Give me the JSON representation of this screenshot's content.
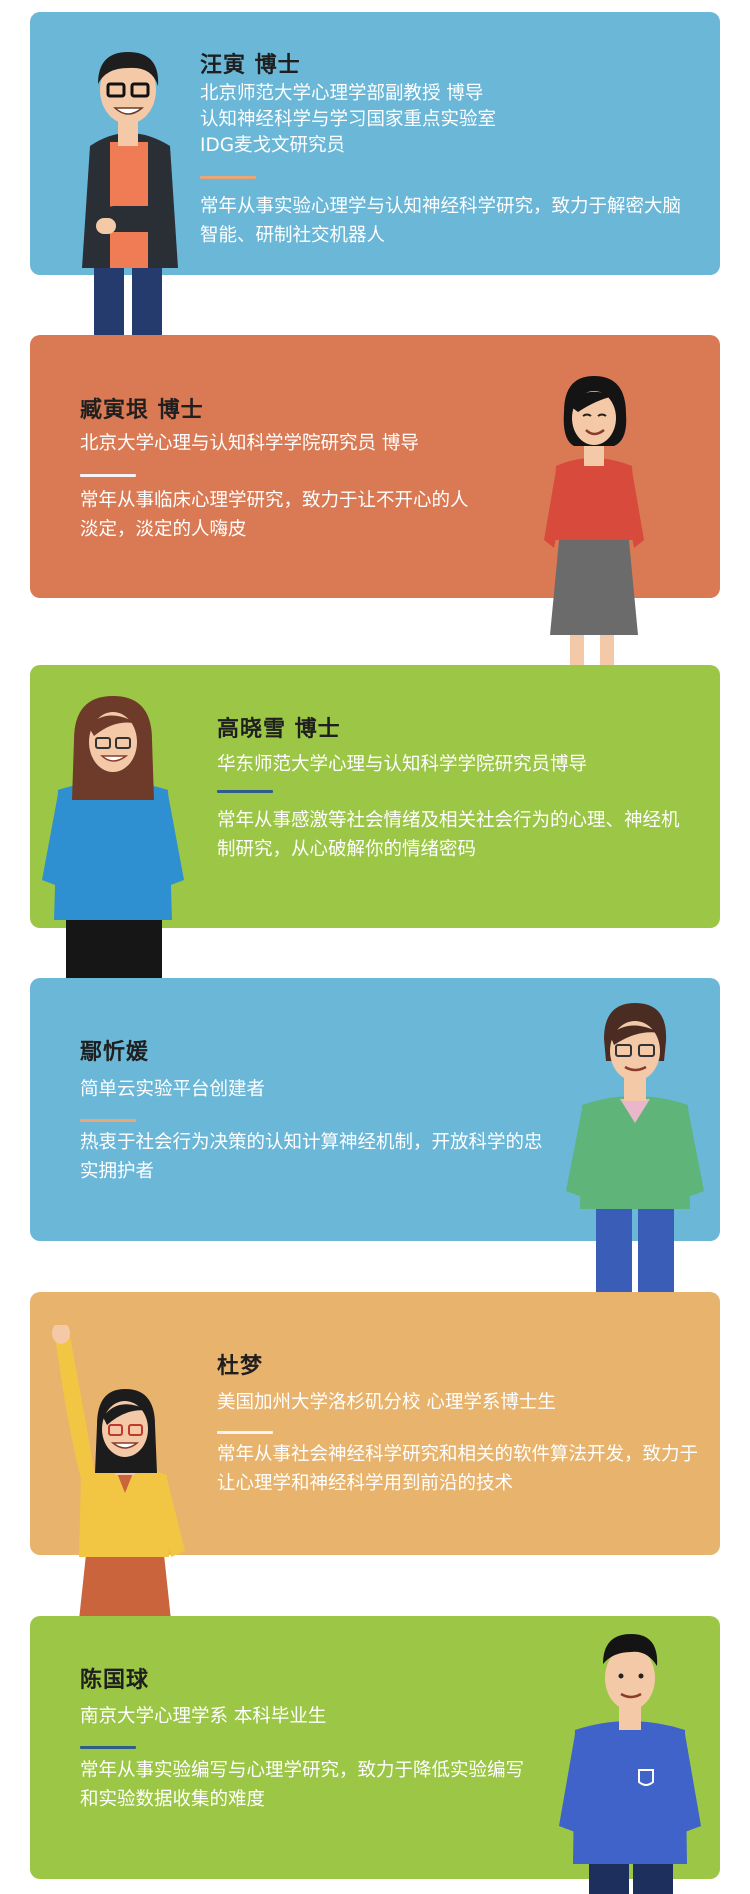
{
  "colors": {
    "blue": "#6ab7d8",
    "orange": "#d97a55",
    "green": "#9cc646",
    "gold": "#e8b36c",
    "sep_orange": "#e8a679",
    "sep_navy": "#2f5d8a",
    "sep_white": "#f4f4f4"
  },
  "members": [
    {
      "name": "汪寅 博士",
      "info": [
        "北京师范大学心理学部副教授 博导",
        "认知神经科学与学习国家重点实验室",
        "IDG麦戈文研究员"
      ],
      "desc": "常年从事实验心理学与认知神经科学研究，致力于解密大脑智能、研制社交机器人"
    },
    {
      "name": "臧寅垠 博士",
      "info": [
        "北京大学心理与认知科学学院研究员 博导"
      ],
      "desc": "常年从事临床心理学研究，致力于让不开心的人淡定，淡定的人嗨皮"
    },
    {
      "name": "高晓雪 博士",
      "info": [
        "华东师范大学心理与认知科学学院研究员博导"
      ],
      "desc": "常年从事感激等社会情绪及相关社会行为的心理、神经机制研究，从心破解你的情绪密码"
    },
    {
      "name": "鄢忻媛",
      "info": [
        "简单云实验平台创建者"
      ],
      "desc": "热衷于社会行为决策的认知计算神经机制，开放科学的忠实拥护者"
    },
    {
      "name": "杜梦",
      "info": [
        "美国加州大学洛杉矶分校 心理学系博士生"
      ],
      "desc": "常年从事社会神经科学研究和相关的软件算法开发，致力于让心理学和神经科学用到前沿的技术"
    },
    {
      "name": "陈国球",
      "info": [
        "南京大学心理学系 本科毕业生"
      ],
      "desc": "常年从事实验编写与心理学研究，致力于降低实验编写和实验数据收集的难度"
    }
  ]
}
